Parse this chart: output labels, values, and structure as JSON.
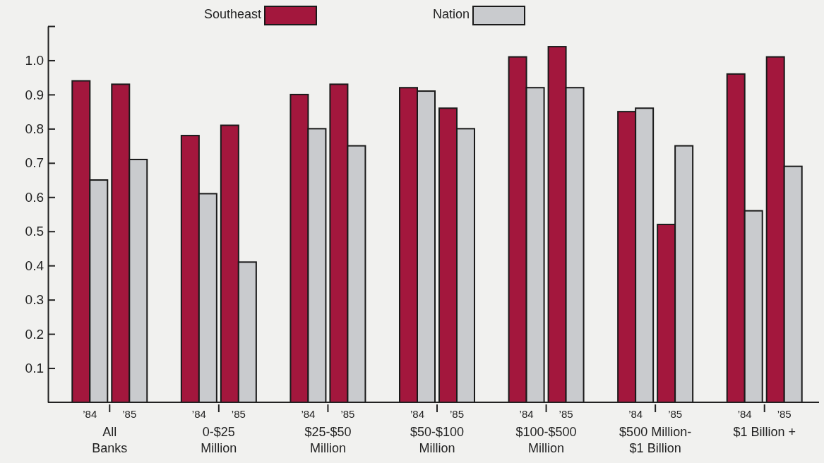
{
  "chart_data": {
    "type": "bar",
    "categories": [
      "’84",
      "’85",
      "’84",
      "’85",
      "’84",
      "’85",
      "’84",
      "’85",
      "’84",
      "’85",
      "’84",
      "’85",
      "’84",
      "’85"
    ],
    "series": [
      {
        "name": "Southeast",
        "color": "#a3173d",
        "values": [
          0.94,
          0.93,
          0.78,
          0.81,
          0.9,
          0.93,
          0.92,
          0.86,
          1.01,
          1.04,
          0.85,
          0.52,
          0.96,
          1.01
        ]
      },
      {
        "name": "Nation",
        "color": "#c9cbce",
        "values": [
          0.65,
          0.71,
          0.61,
          0.41,
          0.8,
          0.75,
          0.91,
          0.8,
          0.92,
          0.92,
          0.86,
          0.75,
          0.56,
          0.69
        ]
      }
    ],
    "annotations": [
      "All\nBanks",
      "0-$25\nMillion",
      "$25-$50\nMillion",
      "$50-$100\nMillion",
      "$100-$500\nMillion",
      "$500 Million-\n$1 Billion",
      "$1 Billion +"
    ],
    "ylim": [
      0,
      1.1
    ],
    "yticks": [
      0.1,
      0.2,
      0.3,
      0.4,
      0.5,
      0.6,
      0.7,
      0.8,
      0.9,
      {
        "value": 1.0,
        "label": "1.0"
      },
      {
        "value": 1.1,
        "label": null
      }
    ],
    "grid": false,
    "legend": "top"
  }
}
